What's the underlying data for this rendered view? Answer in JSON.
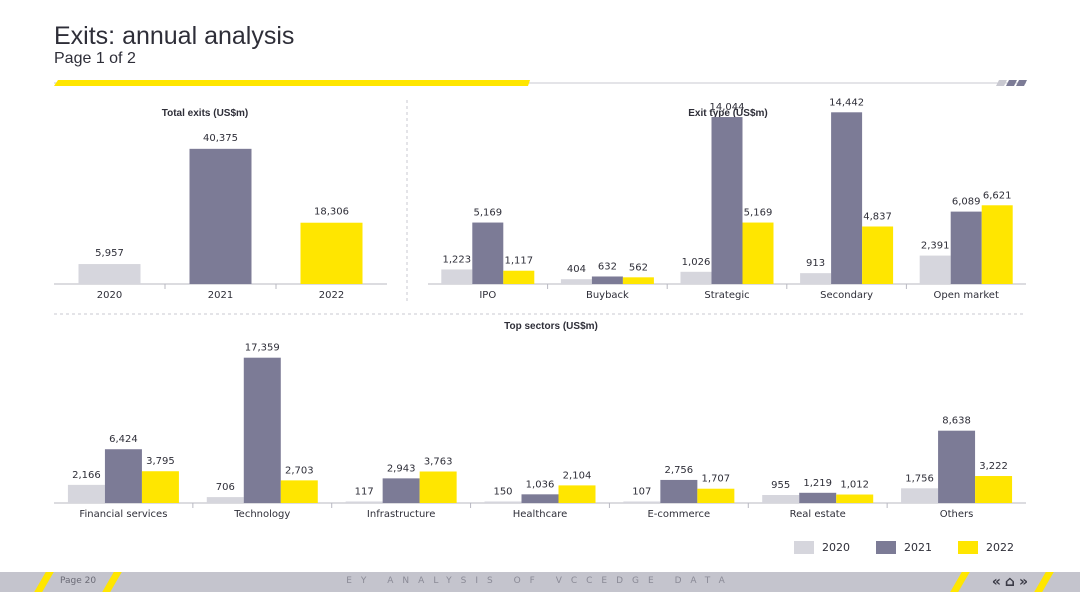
{
  "page": {
    "title": "Exits: annual analysis",
    "subtitle": "Page 1 of 2",
    "footer_page": "Page 20",
    "footer_center": "EY ANALYSIS OF VCCEDGE DATA",
    "nav_prev": "«",
    "nav_home": "⌂",
    "nav_next": "»"
  },
  "colors": {
    "y2020": "#d6d6dd",
    "y2021": "#7c7b96",
    "y2022": "#ffe600",
    "dark": "#2e2e38"
  },
  "legend": [
    "2020",
    "2021",
    "2022"
  ],
  "chart_data": [
    {
      "id": "total",
      "type": "bar",
      "title": "Total exits (US$m)",
      "categories": [
        "2020",
        "2021",
        "2022"
      ],
      "values": [
        5957,
        40375,
        18306
      ],
      "value_labels": [
        "5,957",
        "40,375",
        "18,306"
      ],
      "colors": [
        "y2020",
        "y2021",
        "y2022"
      ],
      "ylim": [
        0,
        46000
      ]
    },
    {
      "id": "exit_type",
      "type": "bar",
      "title": "Exit type (US$m)",
      "categories": [
        "IPO",
        "Buyback",
        "Strategic",
        "Secondary",
        "Open market"
      ],
      "series": [
        {
          "name": "2020",
          "values": [
            1223,
            404,
            1026,
            913,
            2391
          ],
          "labels": [
            "1,223",
            "404",
            "1,026",
            "913",
            "2,391"
          ]
        },
        {
          "name": "2021",
          "values": [
            5169,
            632,
            14044,
            14442,
            6089
          ],
          "labels": [
            "5,169",
            "632",
            "14,044",
            "14,442",
            "6,089"
          ]
        },
        {
          "name": "2022",
          "values": [
            1117,
            562,
            5169,
            4837,
            6621
          ],
          "labels": [
            "1,117",
            "562",
            "5,169",
            "4,837",
            "6,621"
          ]
        }
      ],
      "ylim": [
        0,
        18000
      ]
    },
    {
      "id": "sectors",
      "type": "bar",
      "title": "Top sectors (US$m)",
      "categories": [
        "Financial services",
        "Technology",
        "Infrastructure",
        "Healthcare",
        "E-commerce",
        "Real estate",
        "Others"
      ],
      "series": [
        {
          "name": "2020",
          "values": [
            2166,
            706,
            117,
            150,
            107,
            955,
            1756
          ],
          "labels": [
            "2,166",
            "706",
            "117",
            "150",
            "107",
            "955",
            "1,756"
          ]
        },
        {
          "name": "2021",
          "values": [
            6424,
            17359,
            2943,
            1036,
            2756,
            1219,
            8638
          ],
          "labels": [
            "6,424",
            "17,359",
            "2,943",
            "1,036",
            "2,756",
            "1,219",
            "8,638"
          ]
        },
        {
          "name": "2022",
          "values": [
            3795,
            2703,
            3763,
            2104,
            1707,
            1012,
            3222
          ],
          "labels": [
            "3,795",
            "2,703",
            "3,763",
            "2,104",
            "1,707",
            "1,012",
            "3,222"
          ]
        }
      ],
      "ylim": [
        0,
        17800
      ]
    }
  ]
}
